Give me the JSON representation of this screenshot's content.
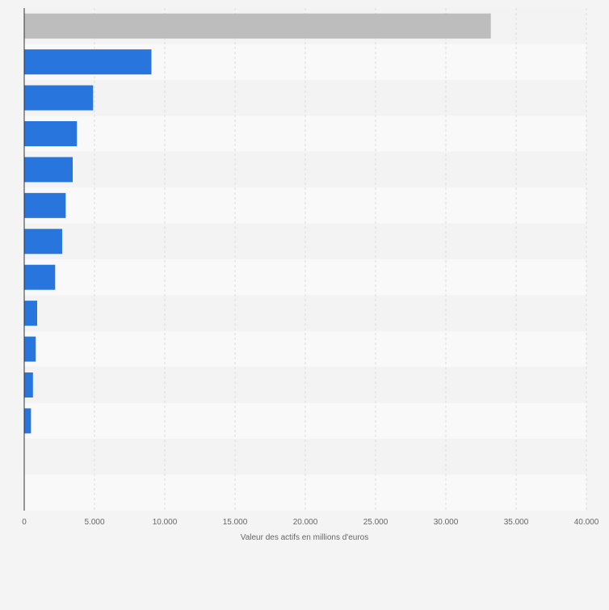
{
  "chart_data": {
    "type": "bar",
    "orientation": "horizontal",
    "categories": [
      "",
      "",
      "",
      "",
      "",
      "",
      "",
      "",
      "",
      "",
      "",
      "",
      "",
      ""
    ],
    "values": [
      33200,
      9050,
      4900,
      3750,
      3450,
      2950,
      2700,
      2200,
      920,
      820,
      620,
      480,
      0,
      0
    ],
    "highlight_index": 0,
    "xlabel": "Valeur des actifs en millions d'euros",
    "ylabel": "",
    "xlim": [
      0,
      40000
    ],
    "xticks": [
      0,
      5000,
      10000,
      15000,
      20000,
      25000,
      30000,
      35000,
      40000
    ],
    "xtick_labels": [
      "0",
      "5.000",
      "10.000",
      "15.000",
      "20.000",
      "25.000",
      "30.000",
      "35.000",
      "40.000"
    ],
    "grid": true,
    "colors": {
      "bar": "#2876dd",
      "bar_highlight": "#bdbdbd",
      "band_light": "#f9f9f9",
      "band_dark": "#f3f3f3",
      "gridline": "#dcdcdc",
      "axis": "#333333",
      "text": "#666666",
      "background": "#f4f4f4"
    }
  }
}
